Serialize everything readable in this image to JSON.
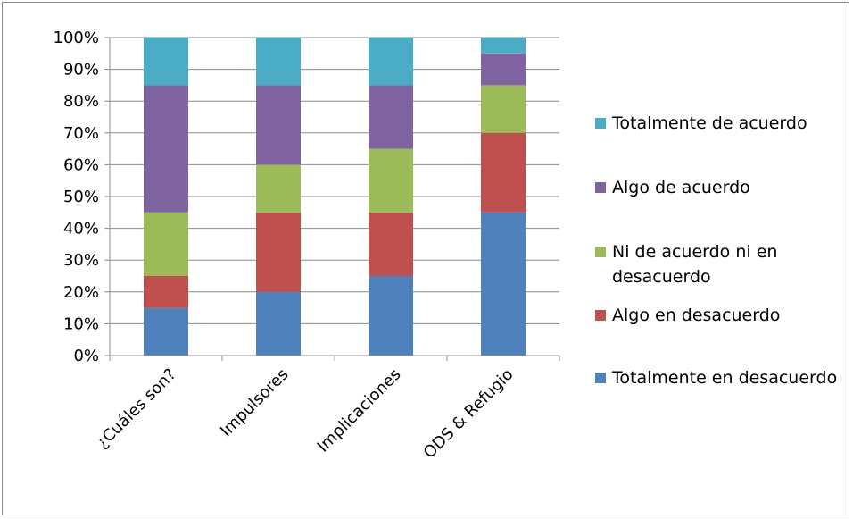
{
  "chart_data": {
    "type": "bar",
    "stacked": true,
    "percent": true,
    "categories": [
      "¿Cuáles son?",
      "Impulsores",
      "Implicaciones",
      "ODS & Refugio"
    ],
    "series": [
      {
        "name": "Totalmente en desacuerdo",
        "color": "#4f81bd",
        "values": [
          15,
          20,
          25,
          45
        ]
      },
      {
        "name": "Algo en desacuerdo",
        "color": "#c0504d",
        "values": [
          10,
          25,
          20,
          25
        ]
      },
      {
        "name": "Ni de acuerdo ni en desacuerdo",
        "legend_lines": [
          "Ni de acuerdo ni en",
          "desacuerdo"
        ],
        "color": "#9bbb59",
        "values": [
          20,
          15,
          20,
          15
        ]
      },
      {
        "name": "Algo de acuerdo",
        "color": "#8064a2",
        "values": [
          40,
          25,
          20,
          10
        ]
      },
      {
        "name": "Totalmente de acuerdo",
        "color": "#4bacc6",
        "values": [
          15,
          15,
          15,
          5
        ]
      }
    ],
    "ylim": [
      0,
      100
    ],
    "yticks": [
      "0%",
      "10%",
      "20%",
      "30%",
      "40%",
      "50%",
      "60%",
      "70%",
      "80%",
      "90%",
      "100%"
    ],
    "grid": true,
    "legend_position": "right",
    "title": "",
    "xlabel": "",
    "ylabel": ""
  }
}
